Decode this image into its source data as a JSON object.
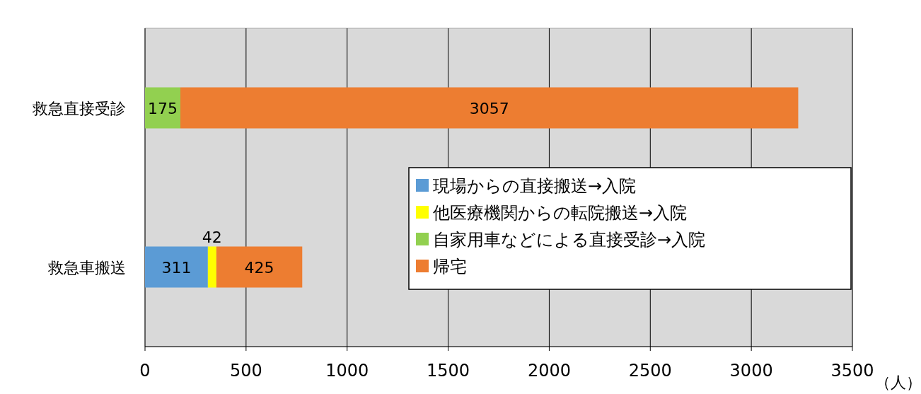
{
  "chart_data": {
    "type": "bar",
    "orientation": "horizontal",
    "stacked": true,
    "categories": [
      "救急直接受診",
      "救急車搬送"
    ],
    "series": [
      {
        "name": "現場からの直接搬送→入院",
        "color": "#5b9bd5",
        "values": [
          null,
          311
        ]
      },
      {
        "name": "他医療機関からの転院搬送→入院",
        "color": "#ffff00",
        "values": [
          null,
          42
        ]
      },
      {
        "name": "自家用車などによる直接受診→入院",
        "color": "#92d050",
        "values": [
          175,
          null
        ]
      },
      {
        "name": "帰宅",
        "color": "#ed7d31",
        "values": [
          3057,
          425
        ]
      }
    ],
    "xlim": [
      0,
      3500
    ],
    "xticks": [
      0,
      500,
      1000,
      1500,
      2000,
      2500,
      3000,
      3500
    ],
    "xlabel": "（人）",
    "grid": "x",
    "legend": "right",
    "data_labels": true
  }
}
